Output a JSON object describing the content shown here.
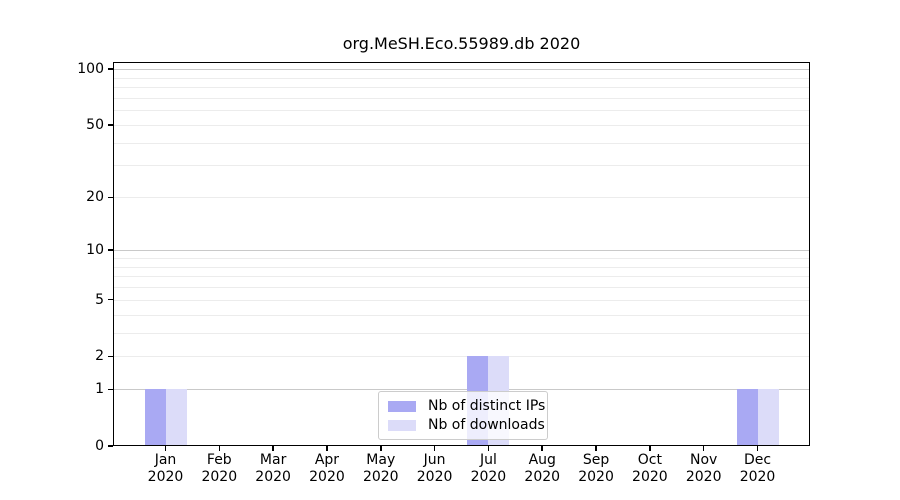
{
  "chart_data": {
    "type": "bar",
    "title": "org.MeSH.Eco.55989.db 2020",
    "categories": [
      "Jan",
      "Feb",
      "Mar",
      "Apr",
      "May",
      "Jun",
      "Jul",
      "Aug",
      "Sep",
      "Oct",
      "Nov",
      "Dec"
    ],
    "x_year_label": "2020",
    "series": [
      {
        "name": "Nb of distinct IPs",
        "color": "#a9a9f3",
        "values": [
          1,
          0,
          0,
          0,
          0,
          0,
          2,
          0,
          0,
          0,
          0,
          1
        ]
      },
      {
        "name": "Nb of downloads",
        "color": "#dcdcf9",
        "values": [
          1,
          0,
          0,
          0,
          0,
          0,
          2,
          0,
          0,
          0,
          0,
          1
        ]
      }
    ],
    "yscale": "log10(1+y)",
    "ylim": [
      0,
      100
    ],
    "ytick_values": [
      0,
      1,
      2,
      5,
      10,
      20,
      50,
      100
    ],
    "ytick_labels": [
      "0",
      "1",
      "2",
      "5",
      "10",
      "20",
      "50",
      "100"
    ],
    "major_gridlines": [
      1,
      10,
      100
    ],
    "minor_gridlines": [
      2,
      3,
      4,
      5,
      6,
      7,
      8,
      9,
      20,
      30,
      40,
      50,
      60,
      70,
      80,
      90
    ],
    "grid": true,
    "legend_position": "lower center"
  },
  "colors": {
    "bar_distinct_ips": "#a9a9f3",
    "bar_downloads": "#dcdcf9",
    "major_grid": "#c9c9c9",
    "minor_grid": "#ececec",
    "frame": "#000000",
    "legend_border": "#cccccc",
    "text": "#000000"
  }
}
